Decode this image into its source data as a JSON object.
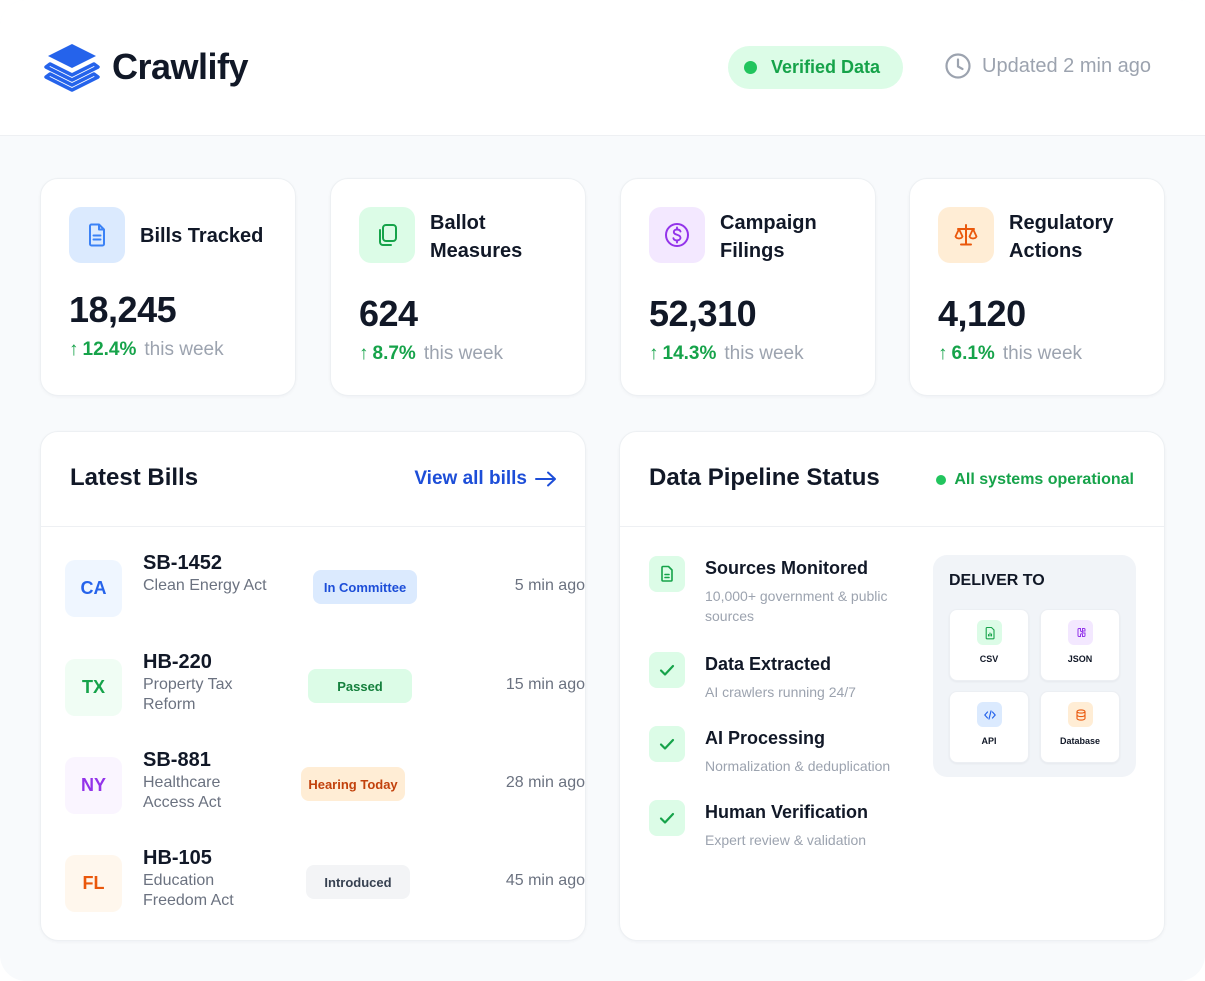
{
  "header": {
    "brand": "Crawlify",
    "verified_label": "Verified Data",
    "updated_label": "Updated 2 min ago"
  },
  "stats": [
    {
      "title": "Bills Tracked",
      "value": "18,245",
      "change": "12.4%",
      "period": "this week",
      "icon": "document-icon",
      "accent": "#3b82f6"
    },
    {
      "title": "Ballot Measures",
      "value": "624",
      "change": "8.7%",
      "period": "this week",
      "icon": "copy-icon",
      "accent": "#16a34a"
    },
    {
      "title": "Campaign Filings",
      "value": "52,310",
      "change": "14.3%",
      "period": "this week",
      "icon": "dollar-icon",
      "accent": "#9333ea"
    },
    {
      "title": "Regulatory Actions",
      "value": "4,120",
      "change": "6.1%",
      "period": "this week",
      "icon": "scale-icon",
      "accent": "#ea580c"
    }
  ],
  "latest_bills": {
    "title": "Latest Bills",
    "view_all": "View all bills",
    "items": [
      {
        "state": "CA",
        "number": "SB-1452",
        "name": "Clean Energy Act",
        "status": "In Committee",
        "time": "5 min ago"
      },
      {
        "state": "TX",
        "number": "HB-220",
        "name": "Property Tax Reform",
        "status": "Passed",
        "time": "15 min ago"
      },
      {
        "state": "NY",
        "number": "SB-881",
        "name": "Healthcare Access Act",
        "status": "Hearing Today",
        "time": "28 min ago"
      },
      {
        "state": "FL",
        "number": "HB-105",
        "name": "Education Freedom Act",
        "status": "Introduced",
        "time": "45 min ago"
      }
    ]
  },
  "pipeline": {
    "title": "Data Pipeline Status",
    "status": "All systems operational",
    "steps": [
      {
        "name": "Sources Monitored",
        "desc": "10,000+ government & public sources",
        "icon": "document-icon"
      },
      {
        "name": "Data Extracted",
        "desc": "AI crawlers running 24/7",
        "icon": "check-icon"
      },
      {
        "name": "AI Processing",
        "desc": "Normalization & deduplication",
        "icon": "check-icon"
      },
      {
        "name": "Human Verification",
        "desc": "Expert review & validation",
        "icon": "check-icon"
      }
    ],
    "deliver": {
      "title": "DELIVER TO",
      "targets": [
        {
          "label": "CSV",
          "icon": "csv-icon"
        },
        {
          "label": "JSON",
          "icon": "json-icon"
        },
        {
          "label": "API",
          "icon": "code-icon"
        },
        {
          "label": "Database",
          "icon": "database-icon"
        }
      ]
    }
  }
}
